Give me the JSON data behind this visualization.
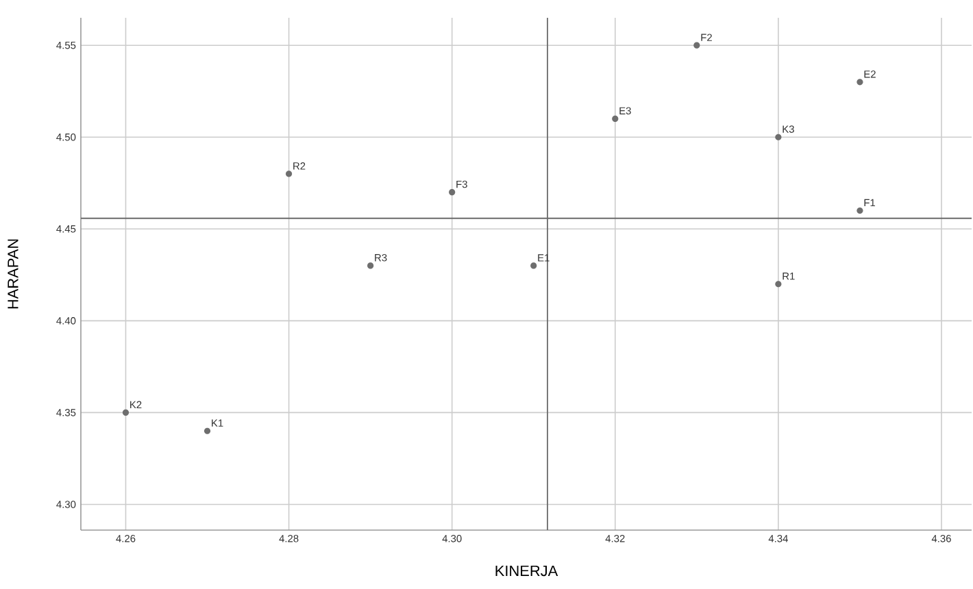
{
  "chart_data": {
    "type": "scatter",
    "xlabel": "KINERJA",
    "ylabel": "HARAPAN",
    "series": [
      {
        "color": "#6e6e6e",
        "x": [
          4.26,
          4.27,
          4.28,
          4.29,
          4.3,
          4.31,
          4.32,
          4.33,
          4.34,
          4.34,
          4.35,
          4.35
        ],
        "values": [
          4.35,
          4.34,
          4.48,
          4.43,
          4.47,
          4.43,
          4.51,
          4.55,
          4.5,
          4.42,
          4.53,
          4.46
        ]
      }
    ],
    "annotations": [
      {
        "text": "K2",
        "x": 4.26,
        "y": 4.35
      },
      {
        "text": "K1",
        "x": 4.27,
        "y": 4.34
      },
      {
        "text": "R2",
        "x": 4.28,
        "y": 4.48
      },
      {
        "text": "R3",
        "x": 4.29,
        "y": 4.43
      },
      {
        "text": "F3",
        "x": 4.3,
        "y": 4.47
      },
      {
        "text": "E1",
        "x": 4.31,
        "y": 4.43
      },
      {
        "text": "E3",
        "x": 4.32,
        "y": 4.51
      },
      {
        "text": "F2",
        "x": 4.33,
        "y": 4.55
      },
      {
        "text": "K3",
        "x": 4.34,
        "y": 4.5
      },
      {
        "text": "R1",
        "x": 4.34,
        "y": 4.42
      },
      {
        "text": "E2",
        "x": 4.35,
        "y": 4.53
      },
      {
        "text": "F1",
        "x": 4.35,
        "y": 4.46
      }
    ],
    "ref_lines": [
      {
        "axis": "x",
        "value": 4.3117,
        "color": "#6a6a6a"
      },
      {
        "axis": "y",
        "value": 4.4558,
        "color": "#6a6a6a"
      }
    ],
    "xlim": [
      4.2545,
      4.3637
    ],
    "ylim": [
      4.286,
      4.565
    ],
    "xticks": [
      4.26,
      4.28,
      {
        "value": 4.3,
        "label": "4.30"
      },
      4.32,
      4.34,
      4.36
    ],
    "yticks": [
      {
        "value": 4.3,
        "label": "4.30"
      },
      4.35,
      {
        "value": 4.4,
        "label": "4.40"
      },
      4.45,
      {
        "value": 4.5,
        "label": "4.50"
      },
      4.55
    ],
    "grid": true,
    "marker": "circle"
  }
}
